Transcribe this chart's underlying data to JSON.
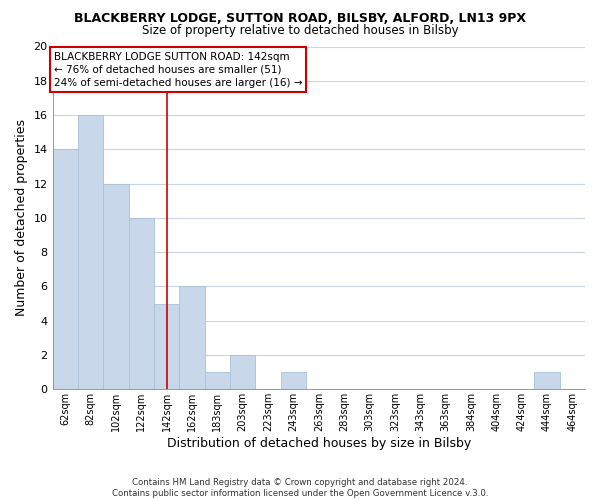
{
  "title": "BLACKBERRY LODGE, SUTTON ROAD, BILSBY, ALFORD, LN13 9PX",
  "subtitle": "Size of property relative to detached houses in Bilsby",
  "xlabel": "Distribution of detached houses by size in Bilsby",
  "ylabel": "Number of detached properties",
  "bin_labels": [
    "62sqm",
    "82sqm",
    "102sqm",
    "122sqm",
    "142sqm",
    "162sqm",
    "183sqm",
    "203sqm",
    "223sqm",
    "243sqm",
    "263sqm",
    "283sqm",
    "303sqm",
    "323sqm",
    "343sqm",
    "363sqm",
    "384sqm",
    "404sqm",
    "424sqm",
    "444sqm",
    "464sqm"
  ],
  "bar_values": [
    14,
    16,
    12,
    10,
    5,
    6,
    1,
    2,
    0,
    1,
    0,
    0,
    0,
    0,
    0,
    0,
    0,
    0,
    0,
    1,
    0
  ],
  "bar_color": "#c8d8ea",
  "bar_edge_color": "#a8c0d8",
  "vline_x_index": 4,
  "vline_color": "#cc0000",
  "ylim": [
    0,
    20
  ],
  "yticks": [
    0,
    2,
    4,
    6,
    8,
    10,
    12,
    14,
    16,
    18,
    20
  ],
  "annotation_lines": [
    "BLACKBERRY LODGE SUTTON ROAD: 142sqm",
    "← 76% of detached houses are smaller (51)",
    "24% of semi-detached houses are larger (16) →"
  ],
  "footer_line1": "Contains HM Land Registry data © Crown copyright and database right 2024.",
  "footer_line2": "Contains public sector information licensed under the Open Government Licence v.3.0.",
  "background_color": "#ffffff",
  "grid_color": "#c8d4e4"
}
